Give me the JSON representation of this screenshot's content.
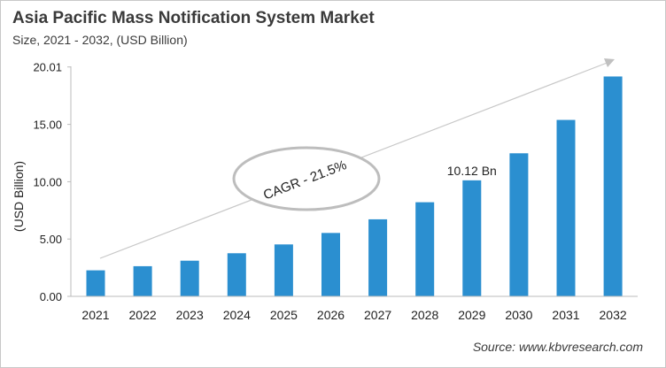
{
  "title": "Asia Pacific Mass Notification System Market",
  "subtitle": "Size, 2021 - 2032, (USD Billion)",
  "source": "Source: www.kbvresearch.com",
  "chart_data": {
    "type": "bar",
    "title": "Asia Pacific Mass Notification System Market",
    "subtitle": "Size, 2021 - 2032, (USD Billion)",
    "xlabel": "",
    "ylabel": "(USD Billion)",
    "categories": [
      "2021",
      "2022",
      "2023",
      "2024",
      "2025",
      "2026",
      "2027",
      "2028",
      "2029",
      "2030",
      "2031",
      "2032"
    ],
    "values": [
      2.27,
      2.63,
      3.11,
      3.76,
      4.53,
      5.53,
      6.72,
      8.21,
      10.12,
      12.48,
      15.39,
      19.18
    ],
    "ylim": [
      0,
      20.01
    ],
    "yticks": [
      "0.00",
      "5.00",
      "10.00",
      "15.00",
      "20.01"
    ],
    "ytick_values": [
      0,
      5,
      10,
      15,
      20.01
    ],
    "grid": false,
    "bar_color": "#2b8fd0",
    "data_labels": [
      {
        "category": "2029",
        "text": "10.12 Bn"
      }
    ],
    "annotations": [
      {
        "text": "CAGR - 21.5%",
        "shape": "ellipse-on-arrow"
      }
    ]
  }
}
